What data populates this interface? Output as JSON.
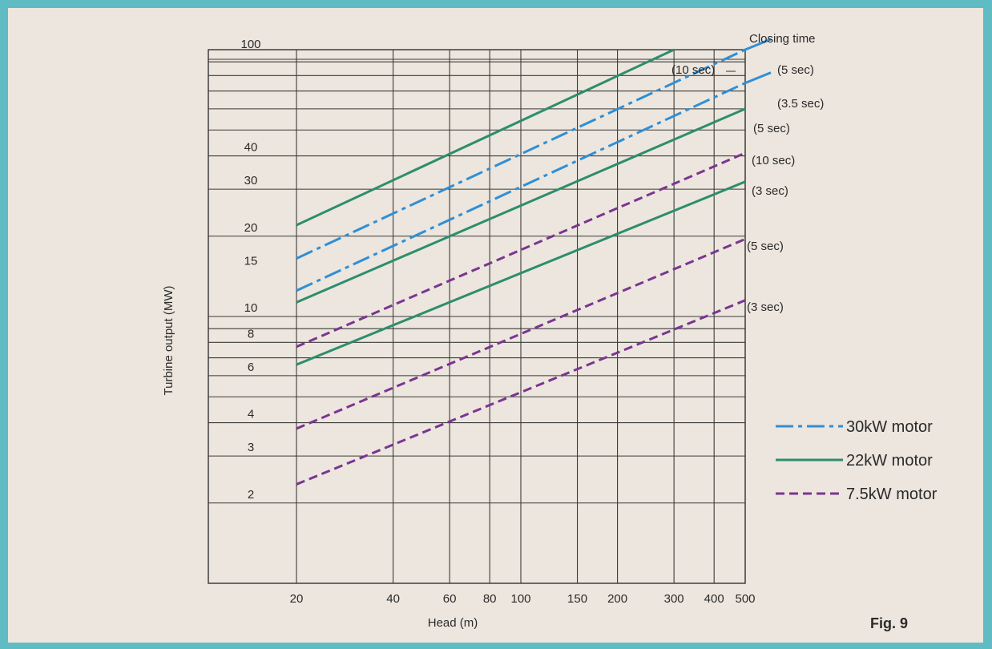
{
  "figure_label": "Fig. 9",
  "chart_data": {
    "type": "line",
    "title": "",
    "xlabel": "Head (m)",
    "ylabel": "Turbine output (MW)",
    "x_scale": "log",
    "y_scale": "log",
    "xlim": [
      20,
      500
    ],
    "ylim": [
      1,
      100
    ],
    "x_ticks": [
      20,
      40,
      60,
      80,
      100,
      150,
      200,
      300,
      400,
      500
    ],
    "y_ticks": [
      2,
      3,
      4,
      6,
      8,
      10,
      15,
      20,
      30,
      40,
      100
    ],
    "closing_time_label": "Closing time",
    "grid": true,
    "legend_position": "bottom-right",
    "legend": [
      {
        "label": "30kW motor",
        "style": "dashdot",
        "color": "#2f8fd6"
      },
      {
        "label": "22kW motor",
        "style": "solid",
        "color": "#2e8d6c"
      },
      {
        "label": "7.5kW motor",
        "style": "dashed",
        "color": "#7b3590"
      }
    ],
    "series": [
      {
        "motor": "22kW motor",
        "closing_time": "(10 sec)",
        "points": [
          [
            20,
            22
          ],
          [
            300,
            100
          ]
        ]
      },
      {
        "motor": "30kW motor",
        "closing_time": "(5 sec)",
        "points": [
          [
            20,
            16.5
          ],
          [
            500,
            100
          ]
        ]
      },
      {
        "motor": "30kW motor",
        "closing_time": "(3.5 sec)",
        "points": [
          [
            20,
            12.5
          ],
          [
            500,
            75
          ]
        ]
      },
      {
        "motor": "22kW motor",
        "closing_time": "(5 sec)",
        "points": [
          [
            20,
            11.3
          ],
          [
            500,
            60
          ]
        ]
      },
      {
        "motor": "7.5kW motor",
        "closing_time": "(10 sec)",
        "points": [
          [
            20,
            7.7
          ],
          [
            500,
            41
          ]
        ]
      },
      {
        "motor": "22kW motor",
        "closing_time": "(3 sec)",
        "points": [
          [
            20,
            6.6
          ],
          [
            500,
            32
          ]
        ]
      },
      {
        "motor": "7.5kW motor",
        "closing_time": "(5 sec)",
        "points": [
          [
            20,
            3.8
          ],
          [
            500,
            19.5
          ]
        ]
      },
      {
        "motor": "7.5kW motor",
        "closing_time": "(3 sec)",
        "points": [
          [
            20,
            2.35
          ],
          [
            500,
            11.5
          ]
        ]
      }
    ]
  }
}
